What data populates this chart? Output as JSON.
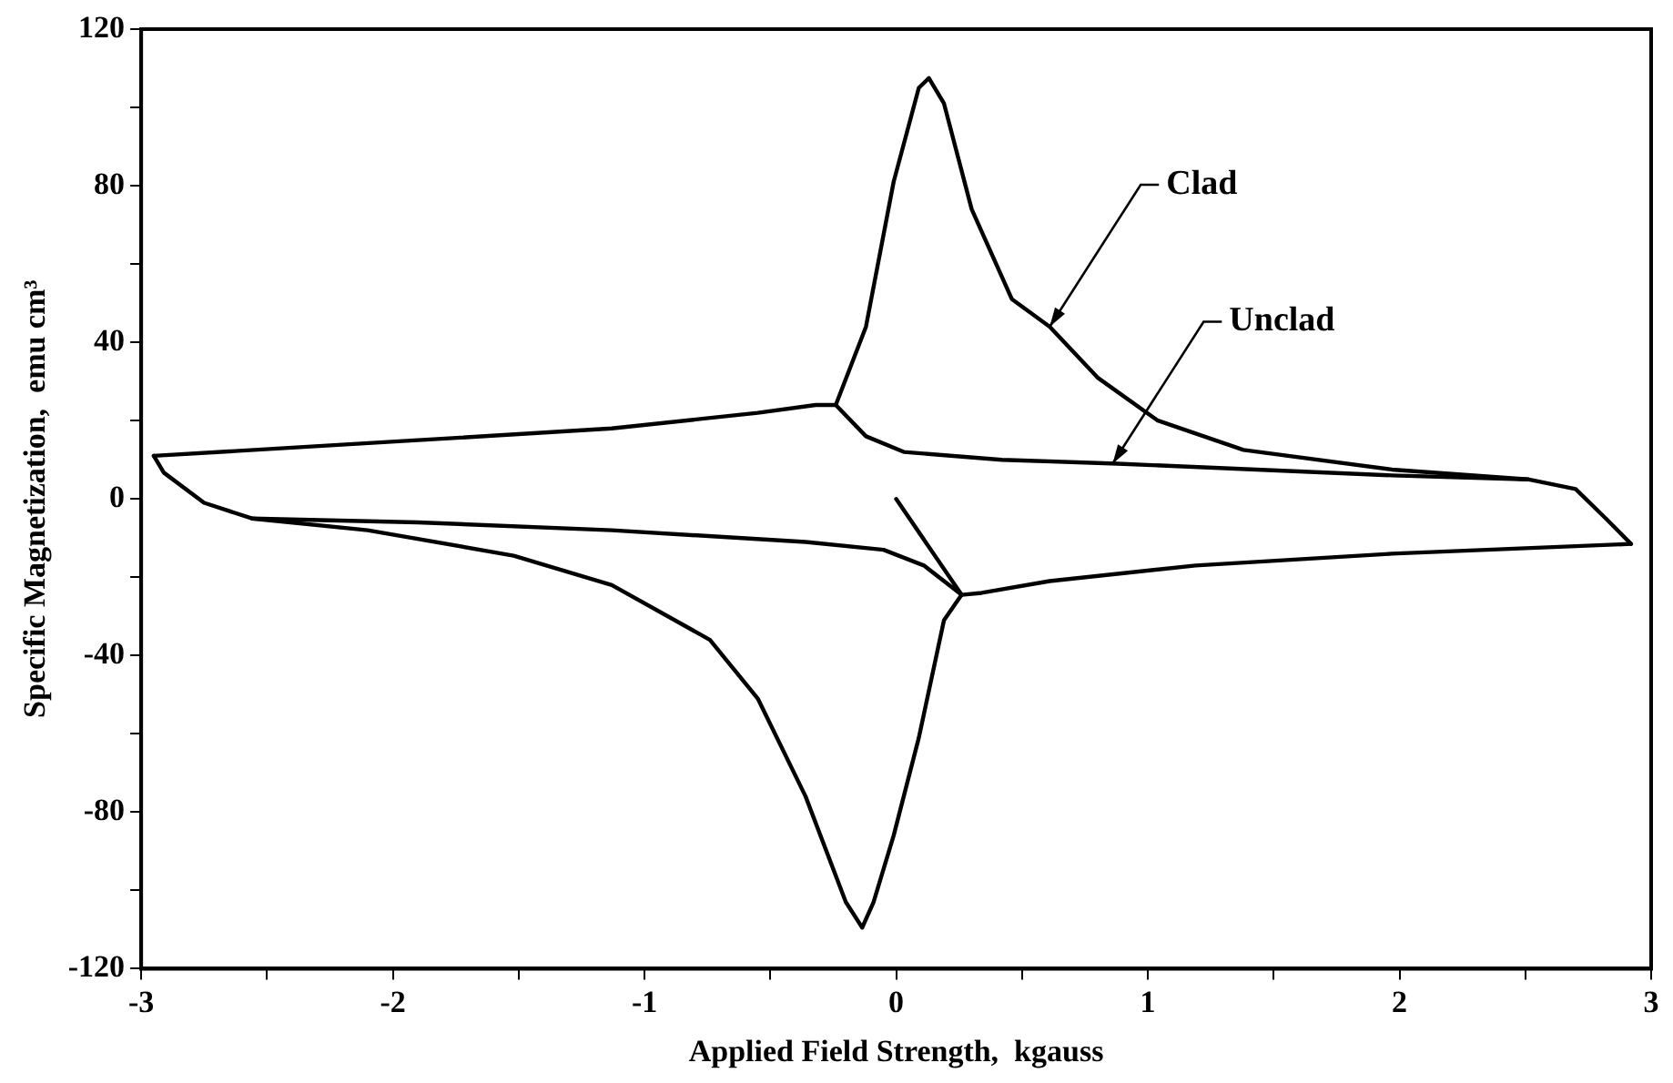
{
  "chart_data": {
    "type": "line",
    "xlabel": "Applied Field Strength,  kgauss",
    "ylabel": "Specific Magnetization,  emu cm³",
    "xlim": [
      -3,
      3
    ],
    "ylim": [
      -120,
      120
    ],
    "xticks": [
      -3,
      {
        "value": -2.5,
        "label": null
      },
      -2,
      {
        "value": -1.5,
        "label": null
      },
      -1,
      {
        "value": -0.5,
        "label": null
      },
      0,
      {
        "value": 0.5,
        "label": null
      },
      1,
      {
        "value": 1.5,
        "label": null
      },
      2,
      {
        "value": 2.5,
        "label": null
      },
      3
    ],
    "yticks": [
      -120,
      {
        "value": -100,
        "label": null
      },
      -80,
      {
        "value": -60,
        "label": null
      },
      -40,
      {
        "value": -20,
        "label": null
      },
      0,
      {
        "value": 20,
        "label": null
      },
      40,
      {
        "value": 60,
        "label": null
      },
      80,
      {
        "value": 100,
        "label": null
      },
      120
    ],
    "grid": false,
    "legend": false,
    "marker": "none",
    "line_style": "solid",
    "annotations": [
      {
        "text": "Clad",
        "x": 0.61,
        "y": 44
      },
      {
        "text": "Unclad",
        "x": 0.86,
        "y": 9
      }
    ],
    "series": [
      {
        "color": "#000000",
        "x": [
          -2.95,
          -1.9,
          -1.13,
          -0.55,
          -0.32,
          -0.24,
          -0.12,
          -0.01,
          0.09,
          0.13,
          0.19,
          0.3,
          0.46,
          0.61,
          0.8,
          1.04,
          1.38,
          1.97,
          2.51,
          2.7,
          2.82,
          2.92
        ],
        "values": [
          11,
          15,
          18,
          22,
          24,
          24,
          44,
          81,
          105,
          107.5,
          101,
          74,
          51,
          44,
          31,
          20,
          12.5,
          7.5,
          5,
          2.5,
          -5,
          -11.5
        ]
      },
      {
        "color": "#000000",
        "x": [
          2.92,
          1.97,
          1.19,
          0.61,
          0.34,
          0.26,
          0.19,
          0.09,
          -0.01,
          -0.09,
          -0.135,
          -0.2,
          -0.36,
          -0.55,
          -0.74,
          -1.13,
          -1.52,
          -2.1,
          -2.56,
          -2.75,
          -2.91,
          -2.95
        ],
        "values": [
          -11.5,
          -14,
          -17,
          -21,
          -24,
          -24.5,
          -31,
          -61,
          -86,
          -103,
          -109.5,
          -103,
          -76,
          -51,
          -36,
          -22,
          -14.5,
          -8,
          -5,
          -1,
          6.7,
          11
        ]
      },
      {
        "color": "#000000",
        "x": [
          -0.24,
          -0.12,
          0.03,
          0.42,
          0.88,
          1.97,
          2.51
        ],
        "values": [
          24,
          16,
          12,
          10,
          9,
          6,
          5
        ]
      },
      {
        "color": "#000000",
        "x": [
          0.26,
          0.11,
          -0.05,
          -0.36,
          -1.13,
          -1.9,
          -2.56
        ],
        "values": [
          -24.5,
          -17,
          -13,
          -11,
          -8,
          -6,
          -5
        ]
      },
      {
        "color": "#000000",
        "x": [
          0,
          0.26
        ],
        "values": [
          0,
          -24.5
        ]
      }
    ]
  }
}
